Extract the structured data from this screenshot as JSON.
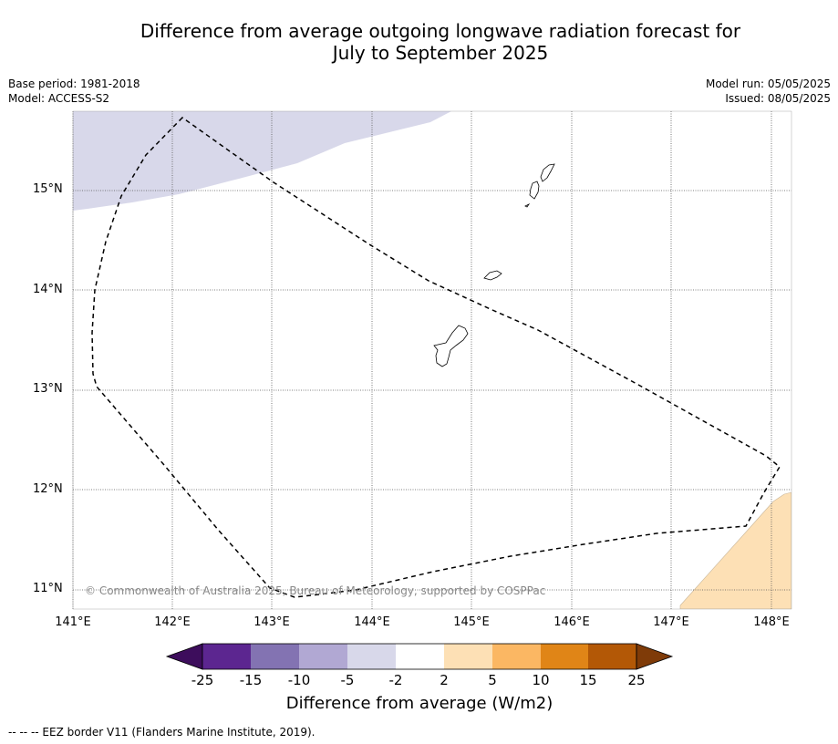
{
  "title_line1": "Difference from average outgoing longwave radiation forecast for",
  "title_line2": "July to September 2025",
  "base_period": "Base period: 1981-2018",
  "model": "Model: ACCESS-S2",
  "model_run": "Model run: 05/05/2025",
  "issued": "Issued: 08/05/2025",
  "copyright": "© Commonwealth of Australia 2025, Bureau of Meteorology, supported by COSPPac",
  "footnote": "--  --  -- EEZ border V11 (Flanders Marine Institute, 2019).",
  "lat_labels": [
    "15°N",
    "14°N",
    "13°N",
    "12°N",
    "11°N"
  ],
  "lon_labels": [
    "141°E",
    "142°E",
    "143°E",
    "144°E",
    "145°E",
    "146°E",
    "147°E",
    "148°E"
  ],
  "colorbar": {
    "label": "Difference from average (W/m2)",
    "ticks": [
      "-25",
      "-15",
      "-10",
      "-5",
      "-2",
      "2",
      "5",
      "10",
      "15",
      "25"
    ],
    "colors": [
      "#3d0d5c",
      "#5c2690",
      "#8373b2",
      "#b1a8d3",
      "#d8d8ea",
      "#ffffff",
      "#fde0b5",
      "#fbb763",
      "#e08517",
      "#b35806",
      "#7f3b08"
    ]
  },
  "map_regions": [
    {
      "name": "negative-anomaly-region",
      "category": "-5 to -2",
      "color": "#d8d8ea"
    },
    {
      "name": "positive-anomaly-region",
      "category": "2 to 5",
      "color": "#fde0b5"
    }
  ]
}
